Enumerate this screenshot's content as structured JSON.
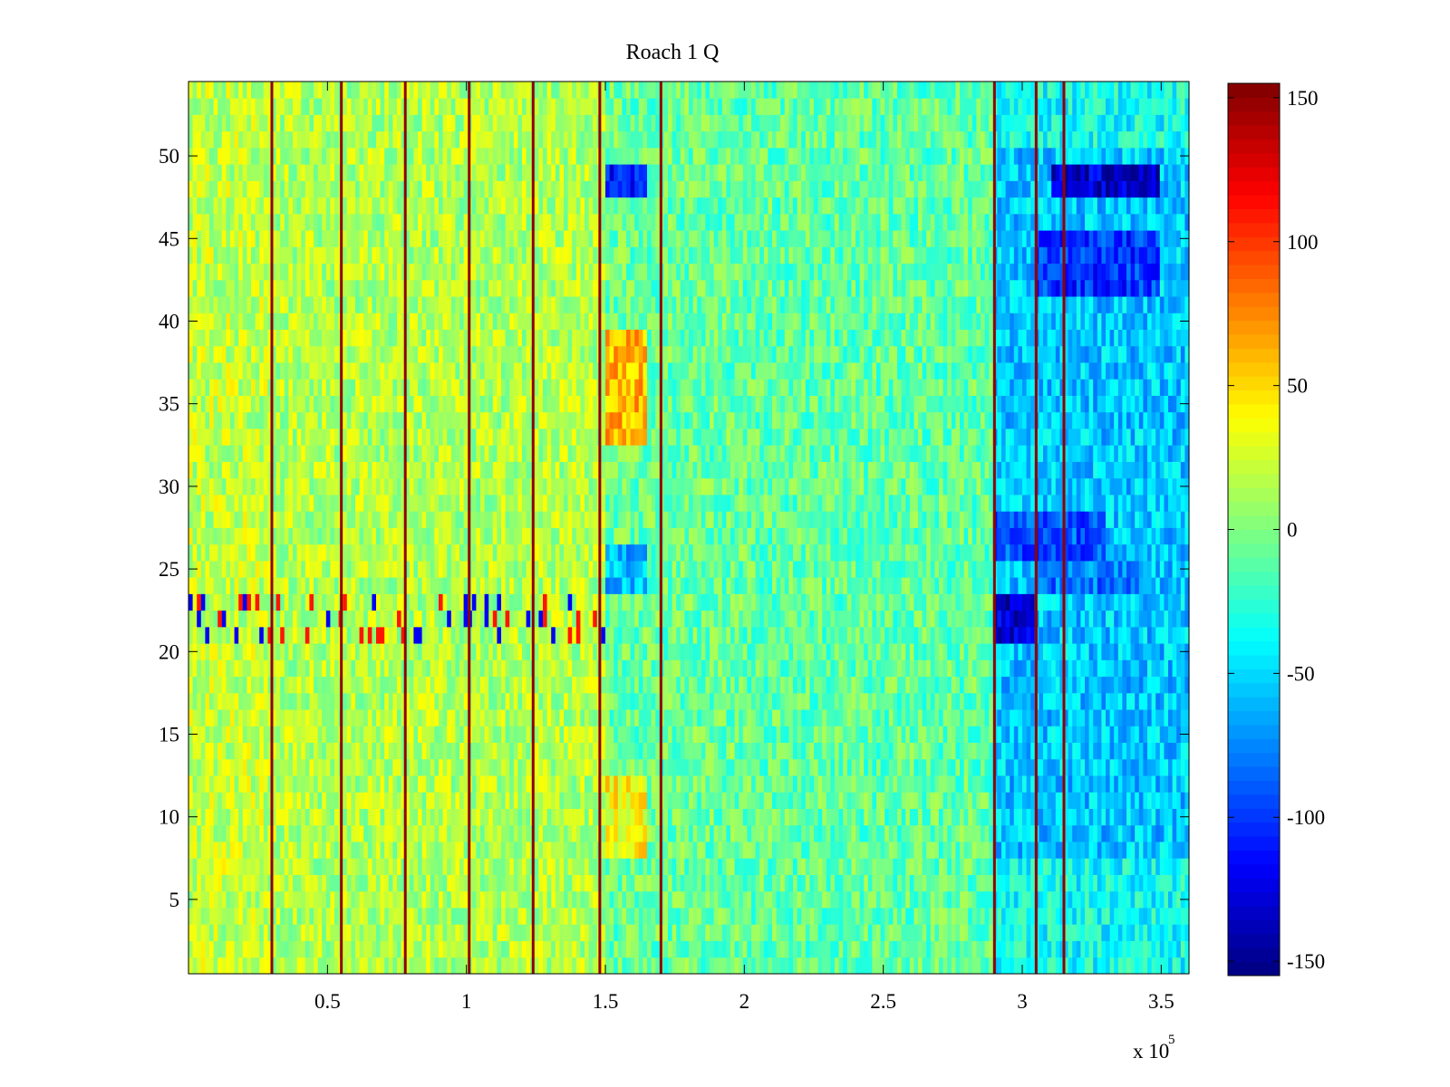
{
  "chart_data": {
    "type": "heatmap",
    "title": "Roach 1 Q",
    "xlabel": "",
    "ylabel": "",
    "x_multiplier_label": "x 10",
    "x_multiplier_exponent": "5",
    "xlim": [
      0,
      360000
    ],
    "ylim": [
      0.5,
      54.5
    ],
    "rows": 54,
    "x_ticks": [
      {
        "value": 50000,
        "label": "0.5"
      },
      {
        "value": 100000,
        "label": "1"
      },
      {
        "value": 150000,
        "label": "1.5"
      },
      {
        "value": 200000,
        "label": "2"
      },
      {
        "value": 250000,
        "label": "2.5"
      },
      {
        "value": 300000,
        "label": "3"
      },
      {
        "value": 350000,
        "label": "3.5"
      }
    ],
    "y_ticks": [
      {
        "value": 5,
        "label": "5"
      },
      {
        "value": 10,
        "label": "10"
      },
      {
        "value": 15,
        "label": "15"
      },
      {
        "value": 20,
        "label": "20"
      },
      {
        "value": 25,
        "label": "25"
      },
      {
        "value": 30,
        "label": "30"
      },
      {
        "value": 35,
        "label": "35"
      },
      {
        "value": 40,
        "label": "40"
      },
      {
        "value": 45,
        "label": "45"
      },
      {
        "value": 50,
        "label": "50"
      }
    ],
    "colorbar": {
      "colormap": "jet",
      "clim": [
        -155,
        155
      ],
      "ticks": [
        {
          "value": 150,
          "label": "150"
        },
        {
          "value": 100,
          "label": "100"
        },
        {
          "value": 50,
          "label": "50"
        },
        {
          "value": 0,
          "label": "0"
        },
        {
          "value": -50,
          "label": "-50"
        },
        {
          "value": -100,
          "label": "-100"
        },
        {
          "value": -150,
          "label": "-150"
        }
      ]
    },
    "vertical_spike_x": [
      30000,
      55000,
      78000,
      101000,
      124000,
      148000,
      170000,
      290000,
      305000,
      315000
    ],
    "spike_value": 150,
    "regions": [
      {
        "x": [
          0,
          30000
        ],
        "y": [
          1,
          54
        ],
        "value": 20
      },
      {
        "x": [
          30000,
          150000
        ],
        "y": [
          21,
          54
        ],
        "value": 15
      },
      {
        "x": [
          150000,
          165000
        ],
        "y": [
          24,
          26
        ],
        "value": -60
      },
      {
        "x": [
          150000,
          165000
        ],
        "y": [
          48,
          49
        ],
        "value": -110
      },
      {
        "x": [
          150000,
          165000
        ],
        "y": [
          33,
          39
        ],
        "value": 60
      },
      {
        "x": [
          150000,
          165000
        ],
        "y": [
          8,
          12
        ],
        "value": 40
      },
      {
        "x": [
          0,
          150000
        ],
        "y": [
          21,
          23
        ],
        "value": 20
      },
      {
        "x": [
          290000,
          305000
        ],
        "y": [
          21,
          23
        ],
        "value": -130
      },
      {
        "x": [
          310000,
          350000
        ],
        "y": [
          48,
          49
        ],
        "value": -130
      },
      {
        "x": [
          305000,
          350000
        ],
        "y": [
          42,
          45
        ],
        "value": -100
      },
      {
        "x": [
          290000,
          330000
        ],
        "y": [
          26,
          28
        ],
        "value": -90
      },
      {
        "x": [
          305000,
          345000
        ],
        "y": [
          24,
          25
        ],
        "value": -80
      },
      {
        "x": [
          290000,
          360000
        ],
        "y": [
          8,
          50
        ],
        "value": -55
      },
      {
        "x": [
          200000,
          290000
        ],
        "y": [
          1,
          54
        ],
        "value": -10
      }
    ]
  }
}
